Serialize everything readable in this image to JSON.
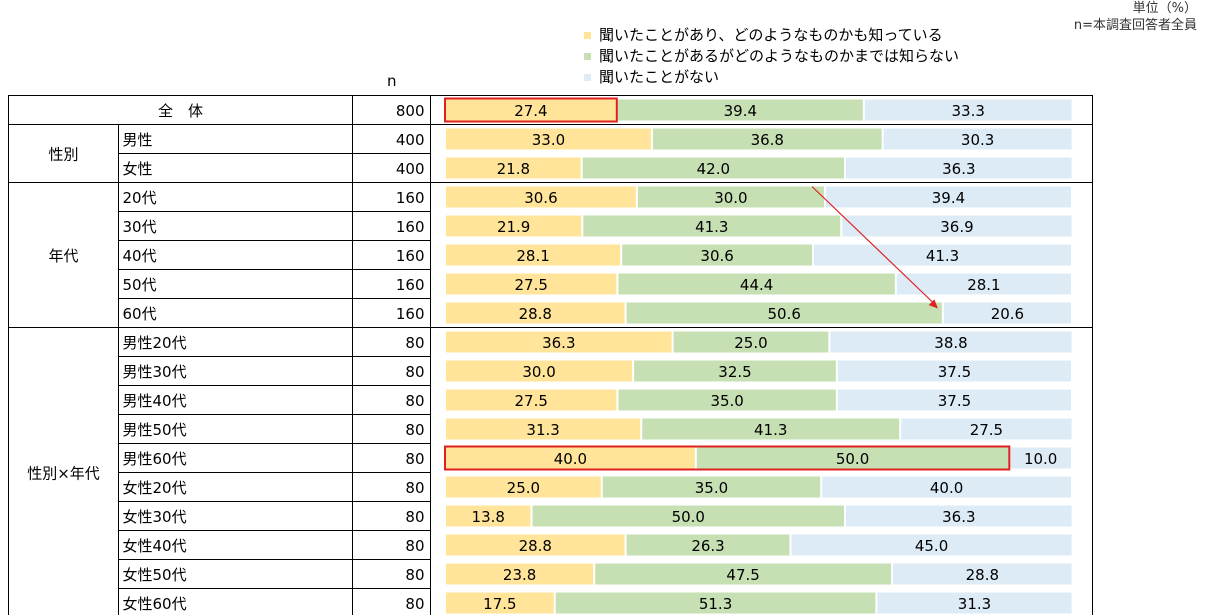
{
  "unit_label": "単位（%）",
  "base_label": "n=本調査回答者全員",
  "n_header": "n",
  "colors": {
    "knows": "#FFE499",
    "heard": "#C6E0B4",
    "never": "#DDEBF7",
    "highlight": "#E02020",
    "arrow": "#E02020",
    "grid": "#000000"
  },
  "chart_data": {
    "type": "bar",
    "stacked": true,
    "orientation": "horizontal",
    "xlim": [
      0,
      100
    ],
    "legend": [
      "聞いたことがあり、どのようなものかも知っている",
      "聞いたことがあるがどのようなものかまでは知らない",
      "聞いたことがない"
    ],
    "groups": [
      {
        "label": "全　体",
        "rows": [
          0
        ]
      },
      {
        "label": "性別",
        "rows": [
          1,
          2
        ]
      },
      {
        "label": "年代",
        "rows": [
          3,
          4,
          5,
          6,
          7
        ]
      },
      {
        "label": "性別×年代",
        "rows": [
          8,
          9,
          10,
          11,
          12,
          13,
          14,
          15,
          16,
          17
        ]
      }
    ],
    "rows": [
      {
        "label": "",
        "n": "800",
        "values": [
          27.4,
          39.4,
          33.3
        ]
      },
      {
        "label": "男性",
        "n": "400",
        "values": [
          33.0,
          36.8,
          30.3
        ]
      },
      {
        "label": "女性",
        "n": "400",
        "values": [
          21.8,
          42.0,
          36.3
        ]
      },
      {
        "label": "20代",
        "n": "160",
        "values": [
          30.6,
          30.0,
          39.4
        ]
      },
      {
        "label": "30代",
        "n": "160",
        "values": [
          21.9,
          41.3,
          36.9
        ]
      },
      {
        "label": "40代",
        "n": "160",
        "values": [
          28.1,
          30.6,
          41.3
        ]
      },
      {
        "label": "50代",
        "n": "160",
        "values": [
          27.5,
          44.4,
          28.1
        ]
      },
      {
        "label": "60代",
        "n": "160",
        "values": [
          28.8,
          50.6,
          20.6
        ]
      },
      {
        "label": "男性20代",
        "n": "80",
        "values": [
          36.3,
          25.0,
          38.8
        ]
      },
      {
        "label": "男性30代",
        "n": "80",
        "values": [
          30.0,
          32.5,
          37.5
        ]
      },
      {
        "label": "男性40代",
        "n": "80",
        "values": [
          27.5,
          35.0,
          37.5
        ]
      },
      {
        "label": "男性50代",
        "n": "80",
        "values": [
          31.3,
          41.3,
          27.5
        ]
      },
      {
        "label": "男性60代",
        "n": "80",
        "values": [
          40.0,
          50.0,
          10.0
        ]
      },
      {
        "label": "女性20代",
        "n": "80",
        "values": [
          25.0,
          35.0,
          40.0
        ]
      },
      {
        "label": "女性30代",
        "n": "80",
        "values": [
          13.8,
          50.0,
          36.3
        ]
      },
      {
        "label": "女性40代",
        "n": "80",
        "values": [
          28.8,
          26.3,
          45.0
        ]
      },
      {
        "label": "女性50代",
        "n": "80",
        "values": [
          23.8,
          47.5,
          28.8
        ]
      },
      {
        "label": "女性60代",
        "n": "80",
        "values": [
          17.5,
          51.3,
          31.3
        ]
      }
    ],
    "highlights": [
      {
        "row": 0,
        "segments": [
          0
        ]
      },
      {
        "row": 12,
        "segments": [
          0,
          1
        ]
      }
    ],
    "annotation_arrow": {
      "from_row": 3,
      "to_row": 7,
      "meaning": "聞いたことがない decreases from 20代 to 60代"
    }
  }
}
